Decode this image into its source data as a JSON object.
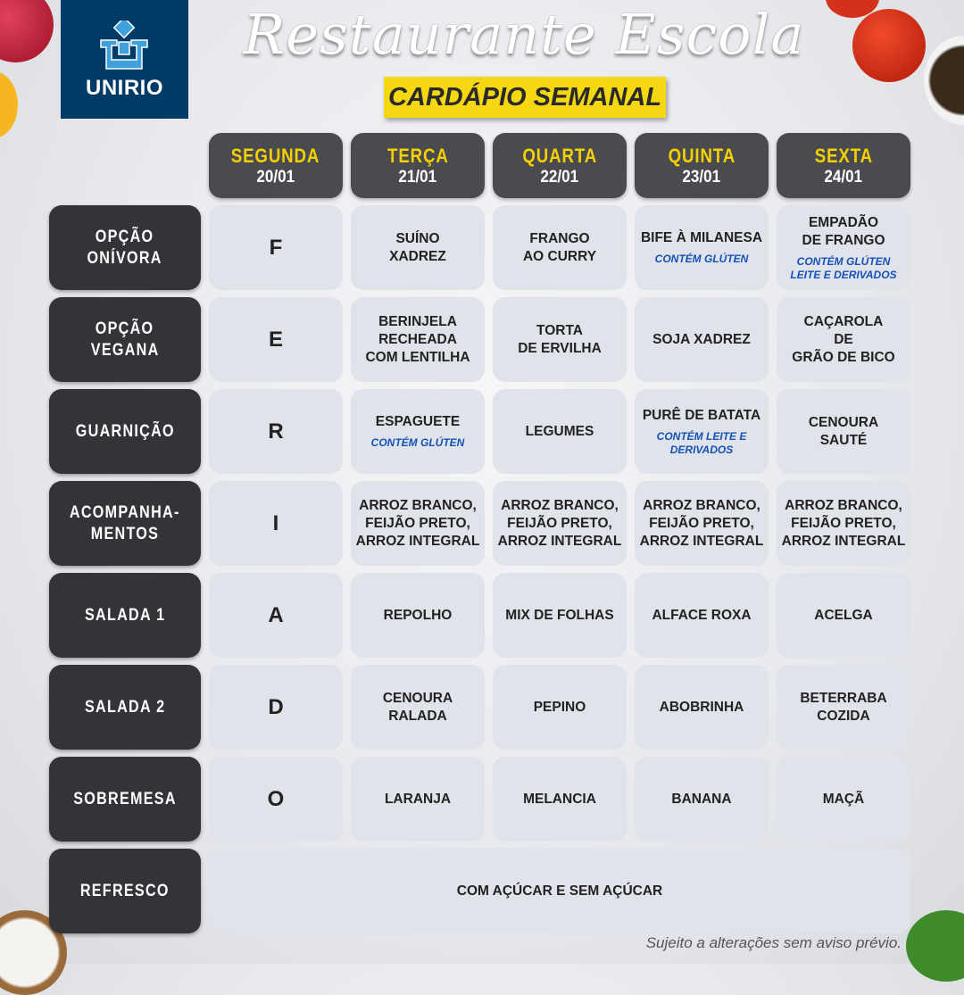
{
  "header": {
    "logo_text": "UNIRIO",
    "title": "Restaurante Escola",
    "subtitle": "CARDÁPIO SEMANAL"
  },
  "colors": {
    "logo_bg": "#003a66",
    "accent_yellow": "#f5d712",
    "note_blue": "#1452b8",
    "label_bg": "#333438"
  },
  "days": [
    {
      "name": "SEGUNDA",
      "date": "20/01"
    },
    {
      "name": "TERÇA",
      "date": "21/01"
    },
    {
      "name": "QUARTA",
      "date": "22/01"
    },
    {
      "name": "QUINTA",
      "date": "23/01"
    },
    {
      "name": "SEXTA",
      "date": "24/01"
    }
  ],
  "rows": [
    {
      "label": [
        "OPÇÃO",
        "ONÍVORA"
      ],
      "cells": [
        {
          "lines": [
            "F"
          ]
        },
        {
          "lines": [
            "SUÍNO",
            "XADREZ"
          ]
        },
        {
          "lines": [
            "FRANGO",
            "AO CURRY"
          ]
        },
        {
          "lines": [
            "BIFE À MILANESA"
          ],
          "note": [
            "CONTÉM GLÚTEN"
          ]
        },
        {
          "lines": [
            "EMPADÃO",
            "DE FRANGO"
          ],
          "note": [
            "CONTÉM GLÚTEN",
            "LEITE E DERIVADOS"
          ]
        }
      ]
    },
    {
      "label": [
        "OPÇÃO",
        "VEGANA"
      ],
      "cells": [
        {
          "lines": [
            "E"
          ]
        },
        {
          "lines": [
            "BERINJELA",
            "RECHEADA",
            "COM LENTILHA"
          ]
        },
        {
          "lines": [
            "TORTA",
            "DE ERVILHA"
          ]
        },
        {
          "lines": [
            "SOJA XADREZ"
          ]
        },
        {
          "lines": [
            "CAÇAROLA",
            "DE",
            "GRÃO DE BICO"
          ]
        }
      ]
    },
    {
      "label": [
        "GUARNIÇÃO"
      ],
      "cells": [
        {
          "lines": [
            "R"
          ]
        },
        {
          "lines": [
            "ESPAGUETE"
          ],
          "note": [
            "CONTÉM GLÚTEN"
          ]
        },
        {
          "lines": [
            "LEGUMES"
          ]
        },
        {
          "lines": [
            "PURÊ DE BATATA"
          ],
          "note": [
            "CONTÉM LEITE E",
            "DERIVADOS"
          ]
        },
        {
          "lines": [
            "CENOURA",
            "SAUTÉ"
          ]
        }
      ]
    },
    {
      "label": [
        "ACOMPANHA-",
        "MENTOS"
      ],
      "cells": [
        {
          "lines": [
            "I"
          ]
        },
        {
          "lines": [
            "ARROZ BRANCO,",
            "FEIJÃO PRETO,",
            "ARROZ INTEGRAL"
          ]
        },
        {
          "lines": [
            "ARROZ BRANCO,",
            "FEIJÃO PRETO,",
            "ARROZ INTEGRAL"
          ]
        },
        {
          "lines": [
            "ARROZ BRANCO,",
            "FEIJÃO PRETO,",
            "ARROZ INTEGRAL"
          ]
        },
        {
          "lines": [
            "ARROZ BRANCO,",
            "FEIJÃO PRETO,",
            "ARROZ INTEGRAL"
          ]
        }
      ]
    },
    {
      "label": [
        "SALADA 1"
      ],
      "cells": [
        {
          "lines": [
            "A"
          ]
        },
        {
          "lines": [
            "REPOLHO"
          ]
        },
        {
          "lines": [
            "MIX DE FOLHAS"
          ]
        },
        {
          "lines": [
            "ALFACE ROXA"
          ]
        },
        {
          "lines": [
            "ACELGA"
          ]
        }
      ]
    },
    {
      "label": [
        "SALADA 2"
      ],
      "cells": [
        {
          "lines": [
            "D"
          ]
        },
        {
          "lines": [
            "CENOURA",
            "RALADA"
          ]
        },
        {
          "lines": [
            "PEPINO"
          ]
        },
        {
          "lines": [
            "ABOBRINHA"
          ]
        },
        {
          "lines": [
            "BETERRABA",
            "COZIDA"
          ]
        }
      ]
    },
    {
      "label": [
        "SOBREMESA"
      ],
      "cells": [
        {
          "lines": [
            "O"
          ]
        },
        {
          "lines": [
            "LARANJA"
          ]
        },
        {
          "lines": [
            "MELANCIA"
          ]
        },
        {
          "lines": [
            "BANANA"
          ]
        },
        {
          "lines": [
            "MAÇÃ"
          ]
        }
      ]
    },
    {
      "label": [
        "REFRESCO"
      ],
      "span_cell": {
        "lines": [
          "COM AÇÚCAR E SEM AÇÚCAR"
        ]
      }
    }
  ],
  "footer": "Sujeito a alterações sem aviso prévio."
}
